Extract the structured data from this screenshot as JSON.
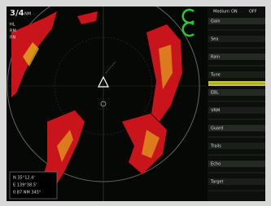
{
  "display": {
    "range": "3/4",
    "unit": "NM",
    "modes": [
      "HL",
      "RM",
      "RN"
    ]
  },
  "panel": {
    "header": [
      "Medium",
      "ON",
      "OFF"
    ],
    "rows": [
      "Gain",
      "Sea",
      "Rain",
      "Tune",
      "EBL",
      "VRM",
      "Guard",
      "Trails",
      "Echo",
      "Target"
    ]
  },
  "position": [
    "N 35°12.4'",
    "E 139°38.5'",
    "0.87 NM 345°"
  ]
}
